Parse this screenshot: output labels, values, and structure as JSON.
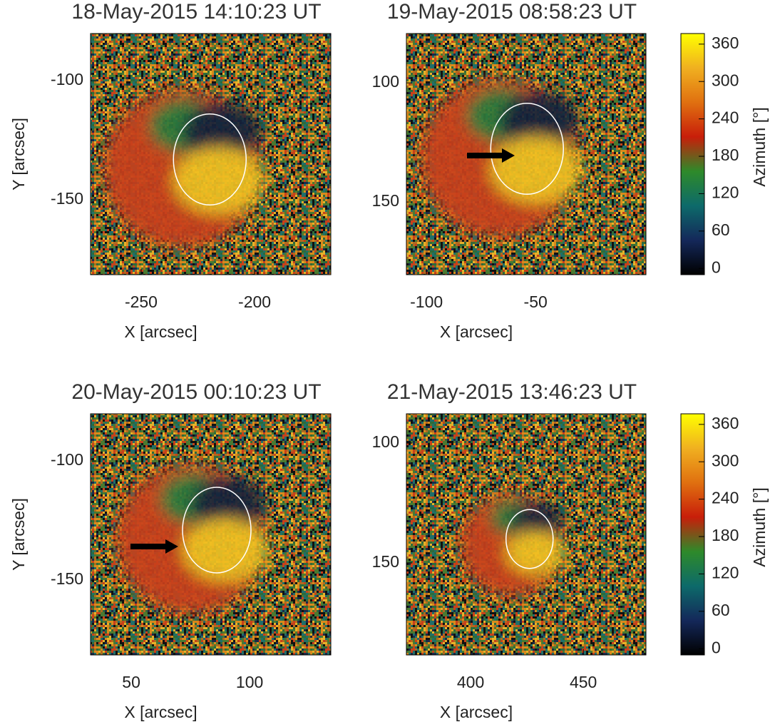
{
  "chart_data": [
    {
      "type": "image",
      "title": "18-May-2015 14:10:23 UT",
      "xlabel": "X [arcsec]",
      "ylabel": "Y [arcsec]",
      "xlim": [
        -272.3,
        -166.4
      ],
      "ylim": [
        -181.4,
        -80.2
      ],
      "xticks": [
        -250,
        -200
      ],
      "yticks": [
        -100,
        -150
      ]
    },
    {
      "type": "image",
      "title": "19-May-2015 08:58:23 UT",
      "xlabel": "X [arcsec]",
      "xlim": [
        -109.2,
        0.6
      ],
      "ylim": [
        180.5,
        79.3
      ],
      "xticks": [
        -100,
        -50
      ],
      "yticks": [
        100,
        150
      ]
    },
    {
      "type": "image",
      "title": "20-May-2015 00:10:23 UT",
      "xlabel": "X [arcsec]",
      "ylabel": "Y [arcsec]",
      "xlim": [
        32.8,
        134.3
      ],
      "ylim": [
        -181.4,
        -80.2
      ],
      "xticks": [
        50,
        100
      ],
      "yticks": [
        -100,
        -150
      ]
    },
    {
      "type": "image",
      "title": "21-May-2015 13:46:23 UT",
      "xlabel": "X [arcsec]",
      "xlim": [
        371.5,
        477.8
      ],
      "ylim": [
        188.4,
        87.8
      ],
      "xticks": [
        400,
        450
      ],
      "yticks": [
        100,
        150
      ]
    },
    {
      "type": "colorbar",
      "label": "Azimuth [°]",
      "ylim": [
        -10,
        377
      ],
      "yticks": [
        0,
        60,
        120,
        180,
        240,
        300,
        360
      ],
      "colormap": [
        "#000000",
        "#14285a",
        "#0d6a6a",
        "#2e8a2a",
        "#c81e0a",
        "#e07010",
        "#f0b020",
        "#ffff00"
      ]
    },
    {
      "type": "colorbar",
      "label": "Azimuth [°]",
      "ylim": [
        -10,
        377
      ],
      "yticks": [
        0,
        60,
        120,
        180,
        240,
        300,
        360
      ],
      "colormap": [
        "#000000",
        "#14285a",
        "#0d6a6a",
        "#2e8a2a",
        "#c81e0a",
        "#e07010",
        "#f0b020",
        "#ffff00"
      ]
    }
  ]
}
